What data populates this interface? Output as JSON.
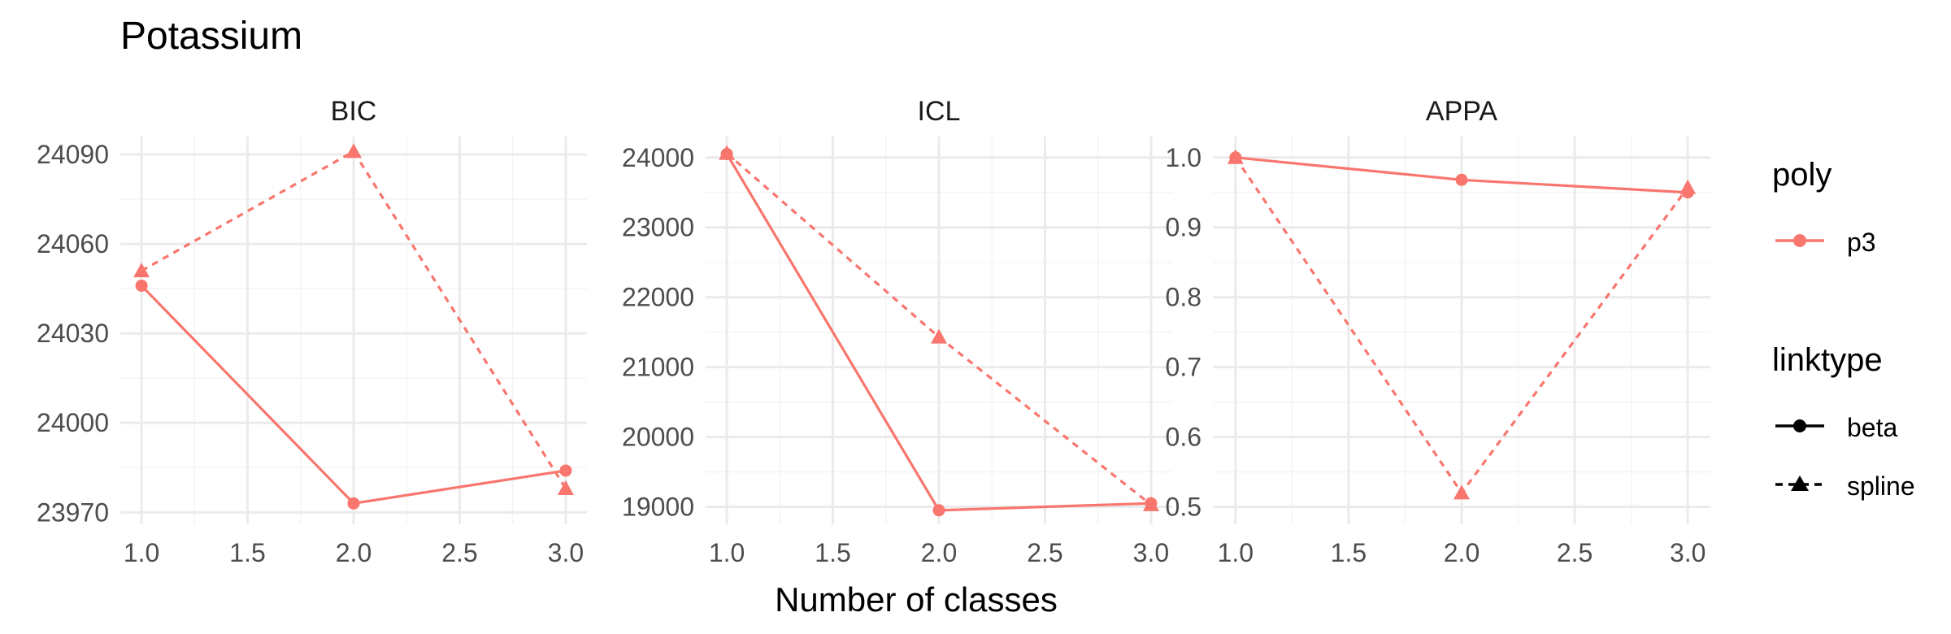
{
  "title": "Potassium",
  "xlabel": "Number of classes",
  "colors": {
    "series": "#F8766D",
    "grid_major": "#EBEBEB",
    "grid_minor": "#F4F4F4",
    "text": "#4D4D4D",
    "title": "#000000"
  },
  "chart_data": {
    "type": "line",
    "title": "Potassium",
    "xlabel": "Number of classes",
    "grid": true,
    "legend_position": "right",
    "panels": [
      {
        "name": "BIC",
        "x_ticks": [
          "1.0",
          "1.5",
          "2.0",
          "2.5",
          "3.0"
        ],
        "x_tick_values": [
          1.0,
          1.5,
          2.0,
          2.5,
          3.0
        ],
        "xlim": [
          0.9,
          3.1
        ],
        "y_ticks": [
          "23970",
          "24000",
          "24030",
          "24060",
          "24090"
        ],
        "y_tick_values": [
          23970,
          24000,
          24030,
          24060,
          24090
        ],
        "ylim": [
          23966,
          24096
        ],
        "series": [
          {
            "linktype": "beta",
            "x": [
              1,
              2,
              3
            ],
            "values": [
              24046,
              23973,
              23984
            ]
          },
          {
            "linktype": "spline",
            "x": [
              1,
              2,
              3
            ],
            "values": [
              24051,
              24091,
              23978
            ]
          }
        ]
      },
      {
        "name": "ICL",
        "x_ticks": [
          "1.0",
          "1.5",
          "2.0",
          "2.5",
          "3.0"
        ],
        "x_tick_values": [
          1.0,
          1.5,
          2.0,
          2.5,
          3.0
        ],
        "xlim": [
          0.9,
          3.1
        ],
        "y_ticks": [
          "19000",
          "20000",
          "21000",
          "22000",
          "23000",
          "24000"
        ],
        "y_tick_values": [
          19000,
          20000,
          21000,
          22000,
          23000,
          24000
        ],
        "ylim": [
          18750,
          24300
        ],
        "series": [
          {
            "linktype": "beta",
            "x": [
              1,
              2,
              3
            ],
            "values": [
              24050,
              18950,
              19050
            ]
          },
          {
            "linktype": "spline",
            "x": [
              1,
              2,
              3
            ],
            "values": [
              24060,
              21430,
              19030
            ]
          }
        ]
      },
      {
        "name": "APPA",
        "x_ticks": [
          "1.0",
          "1.5",
          "2.0",
          "2.5",
          "3.0"
        ],
        "x_tick_values": [
          1.0,
          1.5,
          2.0,
          2.5,
          3.0
        ],
        "xlim": [
          0.9,
          3.1
        ],
        "y_ticks": [
          "0.5",
          "0.6",
          "0.7",
          "0.8",
          "0.9",
          "1.0"
        ],
        "y_tick_values": [
          0.5,
          0.6,
          0.7,
          0.8,
          0.9,
          1.0
        ],
        "ylim": [
          0.475,
          1.03
        ],
        "series": [
          {
            "linktype": "beta",
            "x": [
              1,
              2,
              3
            ],
            "values": [
              1.0,
              0.968,
              0.95
            ]
          },
          {
            "linktype": "spline",
            "x": [
              1,
              2,
              3
            ],
            "values": [
              1.0,
              0.52,
              0.957
            ]
          }
        ]
      }
    ],
    "legend": {
      "poly": {
        "title": "poly",
        "items": [
          "p3"
        ]
      },
      "linktype": {
        "title": "linktype",
        "items": [
          "beta",
          "spline"
        ]
      }
    }
  }
}
